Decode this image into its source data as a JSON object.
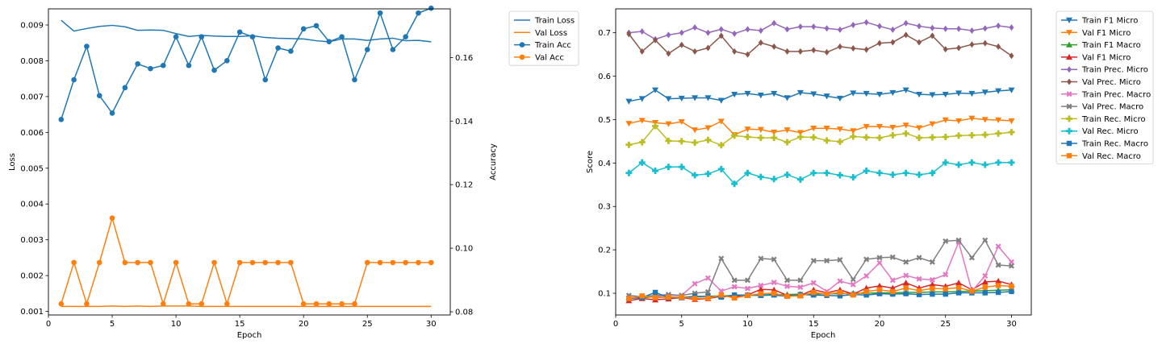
{
  "chart_data": [
    {
      "type": "line",
      "title": "",
      "xlabel": "Epoch",
      "ylabel": "Loss",
      "y2label": "Accuracy",
      "xlim": [
        0,
        31.5
      ],
      "ylim": [
        0.0009,
        0.00945
      ],
      "y2lim": [
        0.079,
        0.1753
      ],
      "xticks": [
        "0",
        "5",
        "10",
        "15",
        "20",
        "25",
        "30"
      ],
      "yticks": [
        "0.001",
        "0.002",
        "0.003",
        "0.004",
        "0.005",
        "0.006",
        "0.007",
        "0.008",
        "0.009"
      ],
      "y2ticks": [
        "0.08",
        "0.10",
        "0.12",
        "0.14",
        "0.16"
      ],
      "grid": false,
      "legend": "outside-top-right",
      "x": [
        1,
        2,
        3,
        4,
        5,
        6,
        7,
        8,
        9,
        10,
        11,
        12,
        13,
        14,
        15,
        16,
        17,
        18,
        19,
        20,
        21,
        22,
        23,
        24,
        25,
        26,
        27,
        28,
        29,
        30
      ],
      "series": [
        {
          "name": "Train Loss",
          "axis": "left",
          "color": "#1f77b4",
          "marker": "none",
          "values": [
            0.00913,
            0.00883,
            0.0089,
            0.00896,
            0.00899,
            0.00895,
            0.00885,
            0.00886,
            0.00885,
            0.00876,
            0.00868,
            0.00871,
            0.00869,
            0.00868,
            0.00868,
            0.0087,
            0.00865,
            0.00863,
            0.00862,
            0.00861,
            0.00856,
            0.00853,
            0.00861,
            0.00861,
            0.00857,
            0.00861,
            0.00863,
            0.00856,
            0.00857,
            0.00853
          ]
        },
        {
          "name": "Val Loss",
          "axis": "left",
          "color": "#ff7f0e",
          "marker": "none",
          "values": [
            0.00114,
            0.00114,
            0.00114,
            0.00114,
            0.00115,
            0.00114,
            0.00115,
            0.00114,
            0.00115,
            0.00115,
            0.00115,
            0.00114,
            0.00114,
            0.00114,
            0.00114,
            0.00114,
            0.00114,
            0.00114,
            0.00114,
            0.00114,
            0.00114,
            0.00114,
            0.00114,
            0.00114,
            0.00114,
            0.00114,
            0.00114,
            0.00114,
            0.00114,
            0.00114
          ]
        },
        {
          "name": "Train Acc",
          "axis": "right",
          "color": "#1f77b4",
          "marker": "circle",
          "values": [
            0.1405,
            0.153,
            0.1635,
            0.148,
            0.1425,
            0.1505,
            0.158,
            0.1565,
            0.1575,
            0.1665,
            0.1575,
            0.1665,
            0.156,
            0.159,
            0.168,
            0.1665,
            0.153,
            0.163,
            0.162,
            0.169,
            0.17,
            0.165,
            0.1665,
            0.153,
            0.1625,
            0.174,
            0.1625,
            0.1665,
            0.174,
            0.1755
          ]
        },
        {
          "name": "Val Acc",
          "axis": "right",
          "color": "#ff7f0e",
          "marker": "circle",
          "values": [
            0.0825,
            0.0955,
            0.0825,
            0.0955,
            0.1095,
            0.0955,
            0.0955,
            0.0955,
            0.0825,
            0.0955,
            0.0825,
            0.0825,
            0.0955,
            0.0825,
            0.0955,
            0.0955,
            0.0955,
            0.0955,
            0.0955,
            0.0825,
            0.0825,
            0.0825,
            0.0825,
            0.0825,
            0.0955,
            0.0955,
            0.0955,
            0.0955,
            0.0955,
            0.0955
          ]
        }
      ]
    },
    {
      "type": "line",
      "title": "",
      "xlabel": "Epoch",
      "ylabel": "Score",
      "xlim": [
        0,
        31.5
      ],
      "ylim": [
        0.05,
        0.755
      ],
      "xticks": [
        "0",
        "5",
        "10",
        "15",
        "20",
        "25",
        "30"
      ],
      "yticks": [
        "0.1",
        "0.2",
        "0.3",
        "0.4",
        "0.5",
        "0.6",
        "0.7"
      ],
      "grid": false,
      "legend": "outside-top-right",
      "x": [
        1,
        2,
        3,
        4,
        5,
        6,
        7,
        8,
        9,
        10,
        11,
        12,
        13,
        14,
        15,
        16,
        17,
        18,
        19,
        20,
        21,
        22,
        23,
        24,
        25,
        26,
        27,
        28,
        29,
        30
      ],
      "series": [
        {
          "name": "Train F1 Micro",
          "color": "#1f77b4",
          "marker": "triangle-down",
          "values": [
            0.542,
            0.548,
            0.568,
            0.548,
            0.549,
            0.55,
            0.55,
            0.544,
            0.558,
            0.56,
            0.556,
            0.56,
            0.55,
            0.562,
            0.559,
            0.554,
            0.549,
            0.561,
            0.56,
            0.558,
            0.562,
            0.568,
            0.558,
            0.557,
            0.558,
            0.561,
            0.56,
            0.563,
            0.566,
            0.568
          ]
        },
        {
          "name": "Val F1 Micro",
          "color": "#ff7f0e",
          "marker": "triangle-down",
          "values": [
            0.491,
            0.498,
            0.493,
            0.49,
            0.495,
            0.476,
            0.481,
            0.496,
            0.465,
            0.478,
            0.477,
            0.471,
            0.476,
            0.47,
            0.48,
            0.48,
            0.478,
            0.474,
            0.484,
            0.484,
            0.482,
            0.487,
            0.481,
            0.49,
            0.499,
            0.497,
            0.503,
            0.5,
            0.499,
            0.497
          ]
        },
        {
          "name": "Train F1 Macro",
          "color": "#2ca02c",
          "marker": "triangle-up",
          "values": [
            0.09,
            0.09,
            0.092,
            0.09,
            0.091,
            0.092,
            0.093,
            0.094,
            0.095,
            0.095,
            0.096,
            0.097,
            0.097,
            0.098,
            0.098,
            0.099,
            0.099,
            0.1,
            0.1,
            0.101,
            0.101,
            0.102,
            0.102,
            0.103,
            0.103,
            0.104,
            0.105,
            0.106,
            0.107,
            0.108
          ]
        },
        {
          "name": "Val F1 Micro",
          "color": "#d62728",
          "marker": "triangle-up",
          "values": [
            0.083,
            0.088,
            0.085,
            0.087,
            0.09,
            0.086,
            0.088,
            0.093,
            0.092,
            0.096,
            0.109,
            0.108,
            0.095,
            0.095,
            0.108,
            0.101,
            0.108,
            0.098,
            0.112,
            0.117,
            0.112,
            0.124,
            0.112,
            0.12,
            0.116,
            0.124,
            0.108,
            0.126,
            0.128,
            0.12
          ]
        },
        {
          "name": "Train Prec. Micro",
          "color": "#9467bd",
          "marker": "diamond",
          "values": [
            0.7,
            0.703,
            0.685,
            0.695,
            0.7,
            0.712,
            0.7,
            0.708,
            0.698,
            0.708,
            0.705,
            0.722,
            0.708,
            0.714,
            0.714,
            0.71,
            0.707,
            0.718,
            0.724,
            0.715,
            0.707,
            0.722,
            0.715,
            0.711,
            0.709,
            0.709,
            0.705,
            0.71,
            0.716,
            0.712
          ]
        },
        {
          "name": "Val Prec. Micro",
          "color": "#8c564b",
          "marker": "diamond",
          "values": [
            0.697,
            0.657,
            0.683,
            0.652,
            0.672,
            0.657,
            0.665,
            0.693,
            0.657,
            0.65,
            0.677,
            0.668,
            0.657,
            0.657,
            0.66,
            0.655,
            0.668,
            0.664,
            0.661,
            0.676,
            0.678,
            0.695,
            0.678,
            0.693,
            0.662,
            0.665,
            0.673,
            0.676,
            0.668,
            0.647
          ]
        },
        {
          "name": "Train Prec. Macro",
          "color": "#e377c2",
          "marker": "x",
          "values": [
            0.09,
            0.092,
            0.093,
            0.095,
            0.095,
            0.122,
            0.135,
            0.105,
            0.115,
            0.111,
            0.118,
            0.125,
            0.116,
            0.114,
            0.124,
            0.104,
            0.128,
            0.12,
            0.14,
            0.17,
            0.13,
            0.141,
            0.133,
            0.131,
            0.143,
            0.218,
            0.105,
            0.14,
            0.208,
            0.172
          ]
        },
        {
          "name": "Val Prec. Macro",
          "color": "#7f7f7f",
          "marker": "x",
          "values": [
            0.095,
            0.092,
            0.095,
            0.097,
            0.095,
            0.1,
            0.103,
            0.18,
            0.13,
            0.13,
            0.18,
            0.178,
            0.13,
            0.13,
            0.175,
            0.175,
            0.177,
            0.132,
            0.178,
            0.182,
            0.183,
            0.172,
            0.182,
            0.172,
            0.22,
            0.222,
            0.182,
            0.222,
            0.165,
            0.163
          ]
        },
        {
          "name": "Train Rec. Micro",
          "color": "#bcbd22",
          "marker": "plus",
          "values": [
            0.442,
            0.448,
            0.485,
            0.451,
            0.45,
            0.447,
            0.453,
            0.441,
            0.463,
            0.46,
            0.458,
            0.458,
            0.448,
            0.46,
            0.459,
            0.452,
            0.449,
            0.461,
            0.459,
            0.458,
            0.464,
            0.468,
            0.458,
            0.459,
            0.46,
            0.463,
            0.464,
            0.465,
            0.468,
            0.471
          ]
        },
        {
          "name": "Val Rec. Micro",
          "color": "#17becf",
          "marker": "plus",
          "values": [
            0.377,
            0.401,
            0.382,
            0.391,
            0.391,
            0.372,
            0.375,
            0.386,
            0.352,
            0.377,
            0.368,
            0.363,
            0.373,
            0.362,
            0.377,
            0.377,
            0.372,
            0.367,
            0.382,
            0.377,
            0.373,
            0.377,
            0.373,
            0.377,
            0.401,
            0.396,
            0.401,
            0.396,
            0.401,
            0.401
          ]
        },
        {
          "name": "Train Rec. Macro",
          "color": "#1f77b4",
          "marker": "square",
          "values": [
            0.088,
            0.09,
            0.102,
            0.09,
            0.09,
            0.093,
            0.093,
            0.091,
            0.096,
            0.096,
            0.095,
            0.096,
            0.093,
            0.097,
            0.096,
            0.095,
            0.094,
            0.097,
            0.096,
            0.099,
            0.098,
            0.099,
            0.097,
            0.098,
            0.098,
            0.101,
            0.101,
            0.101,
            0.102,
            0.104
          ]
        },
        {
          "name": "Val Rec. Macro",
          "color": "#ff7f0e",
          "marker": "square",
          "values": [
            0.088,
            0.094,
            0.09,
            0.091,
            0.091,
            0.088,
            0.089,
            0.096,
            0.089,
            0.095,
            0.099,
            0.1,
            0.093,
            0.094,
            0.102,
            0.098,
            0.102,
            0.096,
            0.104,
            0.108,
            0.104,
            0.112,
            0.106,
            0.111,
            0.11,
            0.113,
            0.105,
            0.114,
            0.118,
            0.116
          ]
        }
      ]
    }
  ]
}
